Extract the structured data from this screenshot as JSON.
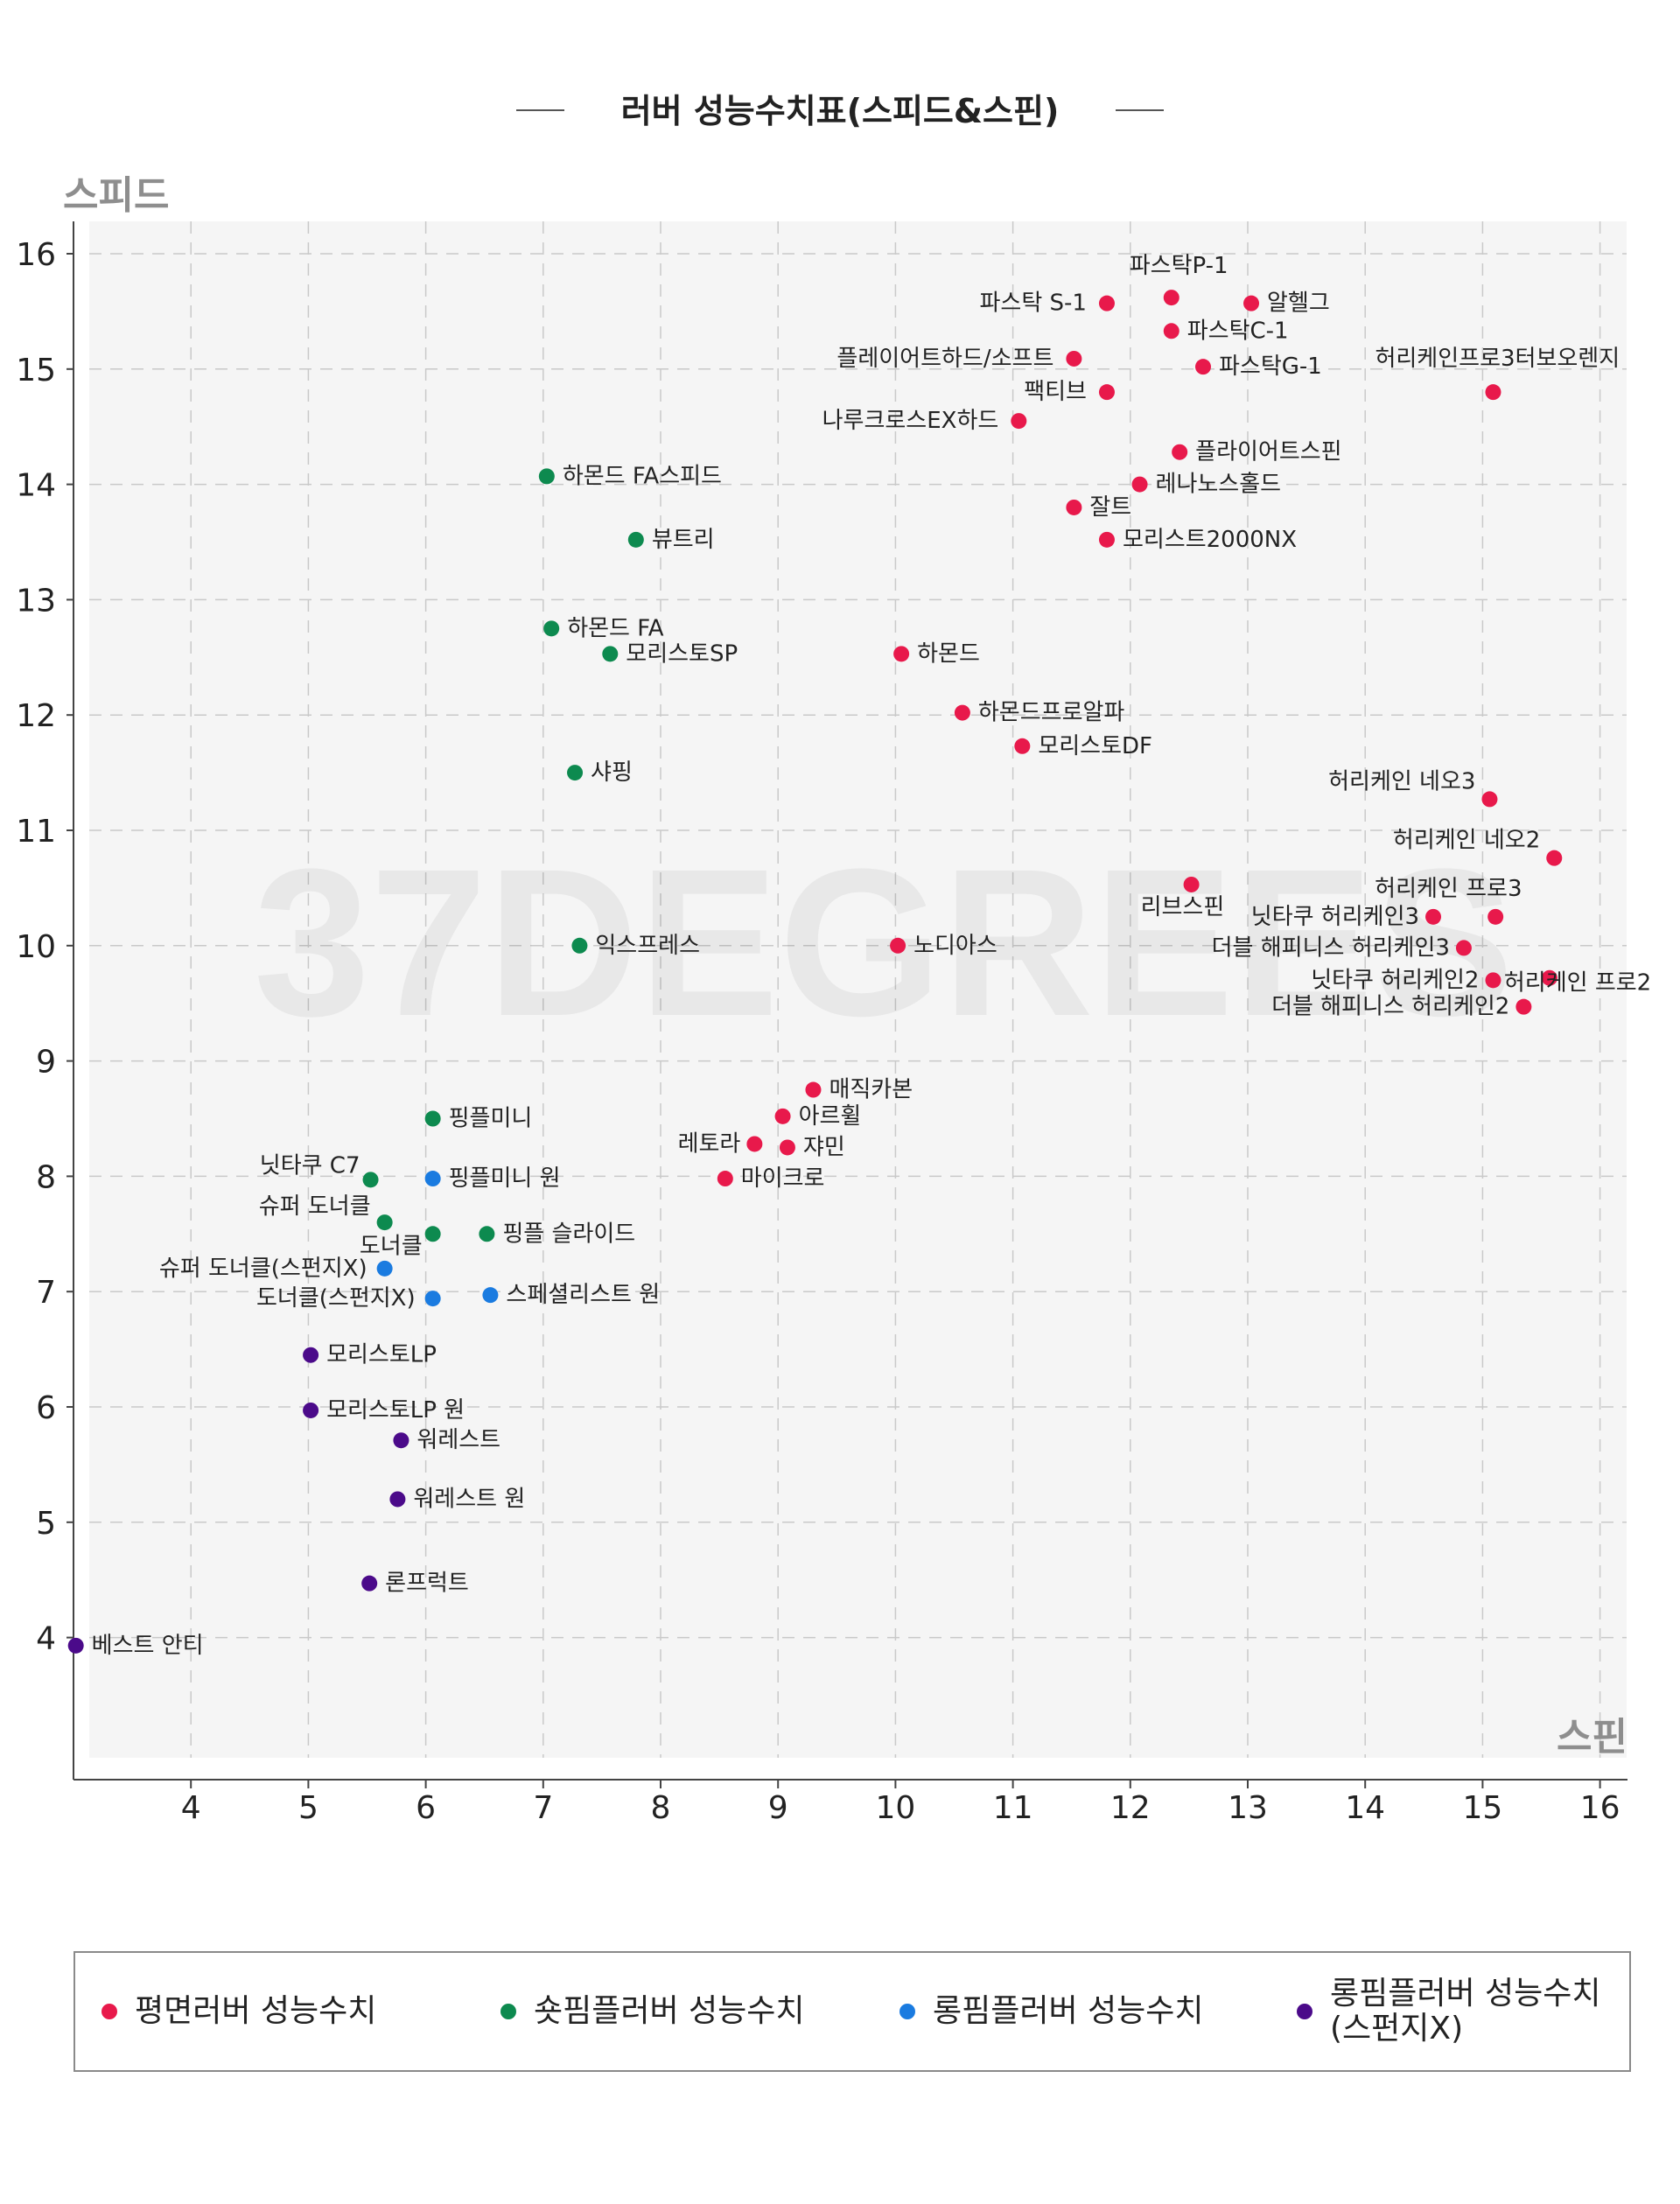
{
  "chart_data": {
    "type": "scatter",
    "title": "러버 성능수치표(스피드&스핀)",
    "xlabel": "스핀",
    "ylabel": "스피드",
    "xlim": [
      3,
      16.2
    ],
    "ylim": [
      2.7,
      16.3
    ],
    "xticks": [
      4,
      5,
      6,
      7,
      8,
      9,
      10,
      11,
      12,
      13,
      14,
      15,
      16
    ],
    "yticks": [
      4,
      5,
      6,
      7,
      8,
      9,
      10,
      11,
      12,
      13,
      14,
      15,
      16
    ],
    "grid": true,
    "watermark": "37DEGREES",
    "legend_position": "bottom",
    "series": [
      {
        "name": "평면러버 성능수치",
        "color": "#e8194b",
        "points": [
          {
            "label": "파스탁P-1",
            "x": 12.35,
            "y": 15.62
          },
          {
            "label": "파스탁 S-1",
            "x": 11.8,
            "y": 15.57
          },
          {
            "label": "알헬그",
            "x": 13.03,
            "y": 15.57
          },
          {
            "label": "파스탁C-1",
            "x": 12.35,
            "y": 15.33
          },
          {
            "label": "플레이어트하드/소프트",
            "x": 11.52,
            "y": 15.09
          },
          {
            "label": "파스탁G-1",
            "x": 12.62,
            "y": 15.02
          },
          {
            "label": "허리케인프로3터보오렌지",
            "x": 15.09,
            "y": 14.8
          },
          {
            "label": "팩티브",
            "x": 11.8,
            "y": 14.8
          },
          {
            "label": "나루크로스EX하드",
            "x": 11.05,
            "y": 14.55
          },
          {
            "label": "플라이어트스핀",
            "x": 12.42,
            "y": 14.28
          },
          {
            "label": "레나노스홀드",
            "x": 12.08,
            "y": 14.0
          },
          {
            "label": "잘트",
            "x": 11.52,
            "y": 13.8
          },
          {
            "label": "모리스트2000NX",
            "x": 11.8,
            "y": 13.52
          },
          {
            "label": "하몬드",
            "x": 10.05,
            "y": 12.53
          },
          {
            "label": "하몬드프로알파",
            "x": 10.57,
            "y": 12.02
          },
          {
            "label": "모리스토DF",
            "x": 11.08,
            "y": 11.73
          },
          {
            "label": "허리케인 네오3",
            "x": 15.06,
            "y": 11.27
          },
          {
            "label": "허리케인 네오2",
            "x": 15.61,
            "y": 10.76
          },
          {
            "label": "리브스핀",
            "x": 12.52,
            "y": 10.53
          },
          {
            "label": "허리케인 프로3",
            "x": 15.11,
            "y": 10.25
          },
          {
            "label": "닛타쿠 허리케인3",
            "x": 14.58,
            "y": 10.25
          },
          {
            "label": "노디아스",
            "x": 10.02,
            "y": 10.0
          },
          {
            "label": "더블 해피니스 허리케인3",
            "x": 14.84,
            "y": 9.98
          },
          {
            "label": "허리케인 프로2",
            "x": 15.57,
            "y": 9.72
          },
          {
            "label": "닛타쿠 허리케인2",
            "x": 15.09,
            "y": 9.7
          },
          {
            "label": "더블 해피니스 허리케인2",
            "x": 15.35,
            "y": 9.47
          },
          {
            "label": "매직카본",
            "x": 9.3,
            "y": 8.75
          },
          {
            "label": "아르휠",
            "x": 9.04,
            "y": 8.52
          },
          {
            "label": "레토라",
            "x": 8.8,
            "y": 8.28
          },
          {
            "label": "쟈민",
            "x": 9.08,
            "y": 8.25
          },
          {
            "label": "마이크로",
            "x": 8.55,
            "y": 7.98
          }
        ]
      },
      {
        "name": "숏핌플러버 성능수치",
        "color": "#0d8a4f",
        "points": [
          {
            "label": "하몬드 FA스피드",
            "x": 7.03,
            "y": 14.07
          },
          {
            "label": "뷰트리",
            "x": 7.79,
            "y": 13.52
          },
          {
            "label": "하몬드 FA",
            "x": 7.07,
            "y": 12.75
          },
          {
            "label": "모리스토SP",
            "x": 7.57,
            "y": 12.53
          },
          {
            "label": "샤핑",
            "x": 7.27,
            "y": 11.5
          },
          {
            "label": "익스프레스",
            "x": 7.31,
            "y": 10.0
          },
          {
            "label": "핑플미니",
            "x": 6.06,
            "y": 8.5
          },
          {
            "label": "닛타쿠 C7",
            "x": 5.53,
            "y": 7.97
          },
          {
            "label": "슈퍼 도너클",
            "x": 5.65,
            "y": 7.6
          },
          {
            "label": "도너클",
            "x": 6.06,
            "y": 7.5
          },
          {
            "label": "핑플 슬라이드",
            "x": 6.52,
            "y": 7.5
          }
        ]
      },
      {
        "name": "롱핌플러버 성능수치",
        "color": "#1a7be0",
        "points": [
          {
            "label": "핑플미니 원",
            "x": 6.06,
            "y": 7.98
          },
          {
            "label": "슈퍼 도너클(스펀지X)",
            "x": 5.65,
            "y": 7.2
          },
          {
            "label": "도너클(스펀지X)",
            "x": 6.06,
            "y": 6.94
          },
          {
            "label": "스페셜리스트 원",
            "x": 6.55,
            "y": 6.97
          }
        ]
      },
      {
        "name": "롱핌플러버 성능수치\n(스펀지X)",
        "color": "#4b0a8a",
        "points": [
          {
            "label": "모리스토LP",
            "x": 5.02,
            "y": 6.45
          },
          {
            "label": "모리스토LP 원",
            "x": 5.02,
            "y": 5.97
          },
          {
            "label": "워레스트",
            "x": 5.79,
            "y": 5.71
          },
          {
            "label": "워레스트 원",
            "x": 5.76,
            "y": 5.2
          },
          {
            "label": "론프럭트",
            "x": 5.52,
            "y": 4.47
          },
          {
            "label": "베스트 안티",
            "x": 3.02,
            "y": 3.93
          }
        ]
      }
    ]
  }
}
